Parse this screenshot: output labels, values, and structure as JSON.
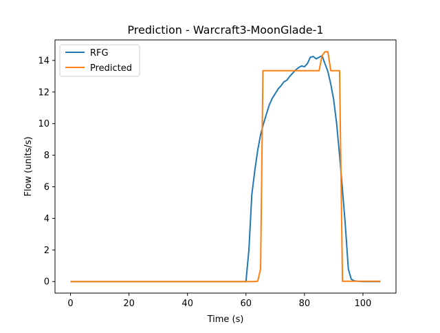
{
  "chart_data": {
    "type": "line",
    "title": "Prediction - Warcraft3-MoonGlade-1",
    "xlabel": "Time (s)",
    "ylabel": "Flow (units/s)",
    "xlim": [
      -5.3,
      111.3
    ],
    "ylim": [
      -0.73,
      15.3
    ],
    "xticks": [
      0,
      20,
      40,
      60,
      80,
      100
    ],
    "yticks": [
      0,
      2,
      4,
      6,
      8,
      10,
      12,
      14
    ],
    "grid": false,
    "legend_position": "top-left",
    "series": [
      {
        "name": "RFG",
        "color": "#1f77b4",
        "x": [
          0,
          20,
          40,
          59.5,
          60,
          60.5,
          61,
          62,
          63,
          64,
          65,
          66,
          67,
          68,
          69,
          70,
          71,
          72,
          73,
          74,
          75,
          76,
          77,
          78,
          79,
          80,
          81,
          82,
          83,
          84,
          85,
          86,
          87,
          88,
          89,
          90,
          91,
          92,
          93,
          94,
          95,
          96,
          97,
          98,
          100,
          106
        ],
        "y": [
          0,
          0,
          0,
          0,
          0,
          1.0,
          2.0,
          5.5,
          7.0,
          8.3,
          9.3,
          10.0,
          10.6,
          11.2,
          11.6,
          11.9,
          12.2,
          12.4,
          12.65,
          12.75,
          13.0,
          13.2,
          13.4,
          13.55,
          13.65,
          13.6,
          13.8,
          14.2,
          14.25,
          14.1,
          14.2,
          14.3,
          13.8,
          13.3,
          12.5,
          11.5,
          10.0,
          8.0,
          5.8,
          3.5,
          0.8,
          0.15,
          0.05,
          0.02,
          0.0,
          0.0
        ]
      },
      {
        "name": "Predicted",
        "color": "#ff7f0e",
        "x": [
          0,
          20,
          40,
          60,
          63,
          64,
          65,
          65.8,
          70,
          80,
          84,
          85,
          86,
          87,
          88,
          89,
          92,
          93,
          95,
          100,
          106
        ],
        "y": [
          0,
          0,
          0,
          0,
          0,
          0.02,
          0.8,
          13.35,
          13.35,
          13.35,
          13.35,
          13.35,
          14.3,
          14.55,
          14.55,
          13.35,
          13.35,
          0.02,
          0.02,
          0.02,
          0.02
        ]
      }
    ]
  }
}
